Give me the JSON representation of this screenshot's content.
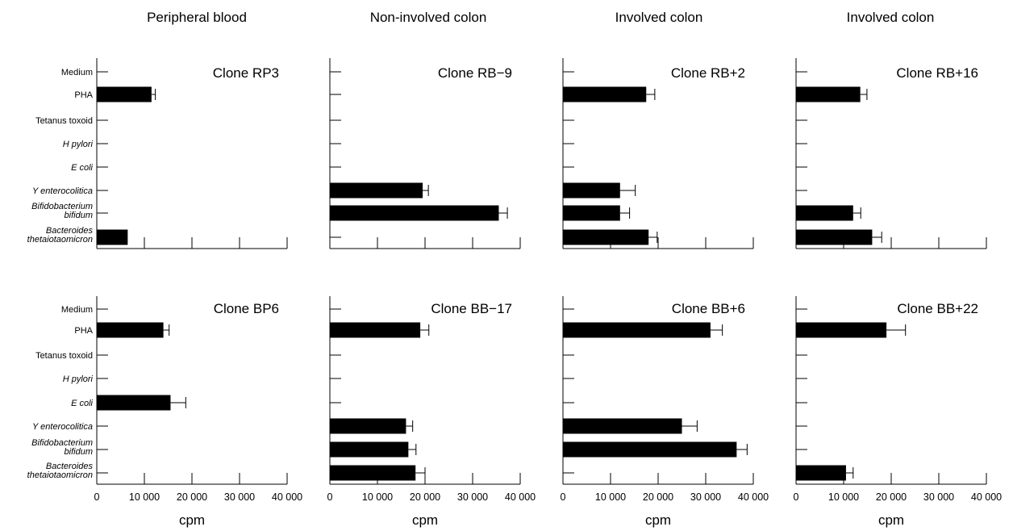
{
  "columns": [
    "Peripheral blood",
    "Non-involved colon",
    "Involved colon",
    "Involved colon"
  ],
  "categories": [
    {
      "lines": [
        "Medium"
      ],
      "italic": false
    },
    {
      "lines": [
        "PHA"
      ],
      "italic": false
    },
    {
      "lines": [
        "Tetanus toxoid"
      ],
      "italic": false
    },
    {
      "lines": [
        "H pylori"
      ],
      "italic": true
    },
    {
      "lines": [
        "E coli"
      ],
      "italic": true
    },
    {
      "lines": [
        "Y enterocolitica"
      ],
      "italic": true
    },
    {
      "lines": [
        "Bifidobacterium",
        "bifidum"
      ],
      "italic": true
    },
    {
      "lines": [
        "Bacteroides",
        "thetaiotaomicron"
      ],
      "italic": true
    }
  ],
  "xlabel": "cpm",
  "x_ticks": [
    "0",
    "10 000",
    "20 000",
    "30 000",
    "40 000"
  ],
  "bar_color": "#000000",
  "chart_data": [
    {
      "type": "bar",
      "orientation": "horizontal",
      "title": "Clone RP3",
      "panel_row": 0,
      "panel_col": 0,
      "xlim": [
        0,
        40000
      ],
      "values": [
        0,
        11500,
        0,
        0,
        0,
        0,
        0,
        6500
      ],
      "errors": [
        0,
        800,
        0,
        0,
        0,
        0,
        0,
        0
      ]
    },
    {
      "type": "bar",
      "orientation": "horizontal",
      "title": "Clone RB−9",
      "panel_row": 0,
      "panel_col": 1,
      "xlim": [
        0,
        40000
      ],
      "values": [
        0,
        0,
        0,
        0,
        0,
        19500,
        35500,
        0
      ],
      "errors": [
        0,
        0,
        0,
        0,
        0,
        1200,
        1800,
        0
      ]
    },
    {
      "type": "bar",
      "orientation": "horizontal",
      "title": "Clone RB+2",
      "panel_row": 0,
      "panel_col": 2,
      "xlim": [
        0,
        40000
      ],
      "values": [
        0,
        17500,
        0,
        0,
        0,
        12000,
        12000,
        18000
      ],
      "errors": [
        0,
        1800,
        0,
        0,
        0,
        3200,
        2000,
        1800
      ]
    },
    {
      "type": "bar",
      "orientation": "horizontal",
      "title": "Clone RB+16",
      "panel_row": 0,
      "panel_col": 3,
      "xlim": [
        0,
        40000
      ],
      "values": [
        0,
        13500,
        0,
        0,
        0,
        0,
        12000,
        16000
      ],
      "errors": [
        0,
        1400,
        0,
        0,
        0,
        0,
        1600,
        2000
      ]
    },
    {
      "type": "bar",
      "orientation": "horizontal",
      "title": "Clone BP6",
      "panel_row": 1,
      "panel_col": 0,
      "xlim": [
        0,
        40000
      ],
      "values": [
        0,
        14000,
        0,
        0,
        15500,
        0,
        0,
        0
      ],
      "errors": [
        0,
        1200,
        0,
        0,
        3200,
        0,
        0,
        0
      ]
    },
    {
      "type": "bar",
      "orientation": "horizontal",
      "title": "Clone BB−17",
      "panel_row": 1,
      "panel_col": 1,
      "xlim": [
        0,
        40000
      ],
      "values": [
        0,
        19000,
        0,
        0,
        0,
        16000,
        16500,
        18000
      ],
      "errors": [
        0,
        1800,
        0,
        0,
        0,
        1400,
        1600,
        2000
      ]
    },
    {
      "type": "bar",
      "orientation": "horizontal",
      "title": "Clone BB+6",
      "panel_row": 1,
      "panel_col": 2,
      "xlim": [
        0,
        40000
      ],
      "values": [
        0,
        31000,
        0,
        0,
        0,
        25000,
        36500,
        0
      ],
      "errors": [
        0,
        2500,
        0,
        0,
        0,
        3200,
        2200,
        0
      ]
    },
    {
      "type": "bar",
      "orientation": "horizontal",
      "title": "Clone BB+22",
      "panel_row": 1,
      "panel_col": 3,
      "xlim": [
        0,
        40000
      ],
      "values": [
        0,
        19000,
        0,
        0,
        0,
        0,
        0,
        10500
      ],
      "errors": [
        0,
        4000,
        0,
        0,
        0,
        0,
        0,
        1500
      ]
    }
  ]
}
